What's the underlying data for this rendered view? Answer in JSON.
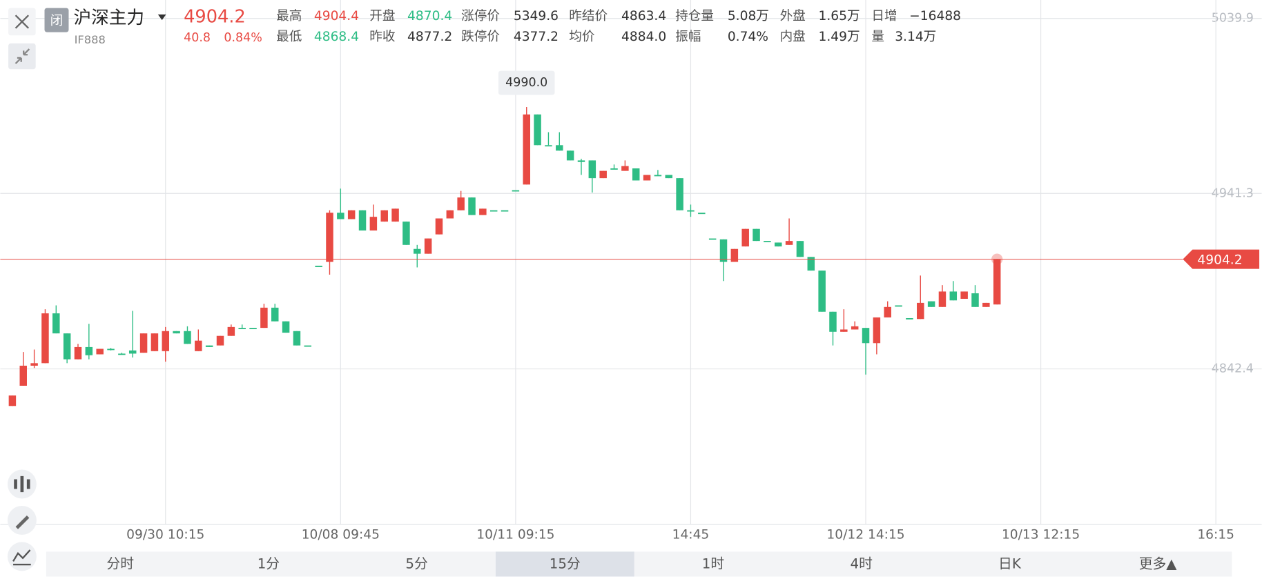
{
  "header": {
    "badge": "闭",
    "name": "沪深主力",
    "code": "IF888",
    "price": "4904.2",
    "change": "40.8",
    "change_pct": "0.84%"
  },
  "quote": {
    "rows": [
      [
        {
          "label": "最高",
          "value": "4904.4",
          "color": "#e84a43"
        },
        {
          "label": "开盘",
          "value": "4870.4",
          "color": "#2ebd85"
        },
        {
          "label": "涨停价",
          "value": "5349.6",
          "color": "#333333"
        },
        {
          "label": "昨结价",
          "value": "4863.4",
          "color": "#333333"
        },
        {
          "label": "持仓量",
          "value": "5.08万",
          "color": "#333333"
        },
        {
          "label": "外盘",
          "value": "1.65万",
          "color": "#333333"
        },
        {
          "label": "日增",
          "value": "−16488",
          "color": "#333333"
        }
      ],
      [
        {
          "label": "最低",
          "value": "4868.4",
          "color": "#2ebd85"
        },
        {
          "label": "昨收",
          "value": "4877.2",
          "color": "#333333"
        },
        {
          "label": "跌停价",
          "value": "4377.2",
          "color": "#333333"
        },
        {
          "label": "均价",
          "value": "4884.0",
          "color": "#333333"
        },
        {
          "label": "振幅",
          "value": "0.74%",
          "color": "#333333"
        },
        {
          "label": "内盘",
          "value": "1.49万",
          "color": "#333333"
        },
        {
          "label": "量",
          "value": "3.14万",
          "color": "#333333"
        }
      ]
    ]
  },
  "periods": {
    "items": [
      "分时",
      "1分",
      "5分",
      "15分",
      "1时",
      "4时",
      "日K",
      "更多▲"
    ],
    "selected": 3
  },
  "chart_data": {
    "type": "candlestick",
    "annotation": "4990.0",
    "up_color": "#e84a43",
    "down_color": "#2ebd85",
    "last_price_color": "#e84a43",
    "grid": true,
    "ylim": [
      4754.8,
      5050.3
    ],
    "yticks": [
      5039.9,
      4941.3,
      4842.4
    ],
    "categories": [
      null,
      null,
      null,
      null,
      null,
      null,
      null,
      null,
      null,
      null,
      null,
      null,
      null,
      null,
      "09/30 10:15",
      null,
      null,
      null,
      null,
      null,
      null,
      null,
      null,
      null,
      null,
      null,
      null,
      null,
      null,
      null,
      "10/08 09:45",
      null,
      null,
      null,
      null,
      null,
      null,
      null,
      null,
      null,
      null,
      null,
      null,
      null,
      null,
      null,
      "10/11 09:15",
      null,
      null,
      null,
      null,
      null,
      null,
      null,
      null,
      null,
      null,
      null,
      null,
      null,
      null,
      null,
      "14:45",
      null,
      null,
      null,
      null,
      null,
      null,
      null,
      null,
      null,
      null,
      null,
      null,
      null,
      null,
      null,
      "10/12 14:15",
      null,
      null,
      null,
      null,
      null,
      null,
      null,
      null,
      null,
      null,
      null,
      null,
      null,
      null,
      null,
      "10/13 12:15",
      null,
      null,
      null,
      null,
      null,
      null,
      null,
      null,
      null,
      null,
      null,
      null,
      null,
      null,
      null,
      "16:15"
    ],
    "open": [
      4821.5,
      4832.9,
      4844.2,
      4845.6,
      4873.7,
      4862.4,
      4847.8,
      4854.7,
      4850.6,
      4853.7,
      4851.0,
      4852.8,
      4851.5,
      4852.4,
      4852.4,
      4863.7,
      4863.7,
      4852.4,
      4855.6,
      4855.6,
      4861.0,
      4865.5,
      4865.5,
      4865.5,
      4876.9,
      4869.2,
      4863.7,
      4855.6,
      4900.5,
      4902.7,
      4930.4,
      4926.8,
      4931.8,
      4920.4,
      4925.4,
      4925.4,
      4925.4,
      4910.0,
      4907.3,
      4918.2,
      4927.2,
      4931.8,
      4939.0,
      4929.1,
      4931.8,
      4931.8,
      4943.1,
      4946.3,
      4985.8,
      4968.5,
      4968.5,
      4965.4,
      4959.9,
      4959.9,
      4949.9,
      4955.4,
      4954.0,
      4955.4,
      4948.6,
      4951.7,
      4951.7,
      4949.9,
      4931.8,
      4930.4,
      4915.9,
      4915.4,
      4902.7,
      4911.4,
      4921.3,
      4914.5,
      4913.6,
      4912.3,
      4914.5,
      4905.5,
      4897.8,
      4874.6,
      4863.3,
      4864.6,
      4865.5,
      4856.9,
      4871.4,
      4878.2,
      4871.0,
      4870.5,
      4880.5,
      4877.3,
      4886.0,
      4881.9,
      4885.0,
      4877.3,
      4878.7,
      null,
      null,
      null,
      null,
      null,
      null,
      null,
      null,
      null,
      null,
      null,
      null,
      null,
      null,
      null,
      null,
      null,
      null,
      null,
      null
    ],
    "high": [
      4827.4,
      4851.9,
      4853.3,
      4876.0,
      4878.2,
      4862.4,
      4856.5,
      4867.8,
      4853.7,
      4854.2,
      4851.5,
      4875.1,
      4862.4,
      4862.4,
      4866.0,
      4863.7,
      4866.4,
      4864.6,
      4855.6,
      4861.0,
      4867.4,
      4867.4,
      4865.5,
      4879.1,
      4879.1,
      4869.2,
      4863.7,
      4855.6,
      4900.5,
      4931.8,
      4944.0,
      4931.8,
      4931.8,
      4935.0,
      4931.8,
      4932.7,
      4925.4,
      4912.3,
      4915.9,
      4927.2,
      4931.8,
      4942.7,
      4939.0,
      4932.7,
      4931.8,
      4931.8,
      4943.1,
      4990.0,
      4985.8,
      4975.8,
      4975.8,
      4965.4,
      4960.8,
      4959.9,
      4954.0,
      4957.6,
      4959.9,
      4955.4,
      4951.7,
      4954.5,
      4951.7,
      4949.9,
      4935.0,
      4930.4,
      4915.9,
      4915.4,
      4910.0,
      4921.3,
      4921.3,
      4914.5,
      4913.6,
      4927.2,
      4914.5,
      4905.5,
      4897.8,
      4874.6,
      4876.0,
      4869.2,
      4865.5,
      4871.4,
      4880.5,
      4878.2,
      4871.0,
      4895.0,
      4880.5,
      4889.6,
      4891.9,
      4886.0,
      4889.6,
      4879.6,
      4904.4,
      null,
      null,
      null,
      null,
      null,
      null,
      null,
      null,
      null,
      null,
      null,
      null,
      null,
      null,
      null,
      null,
      null,
      null,
      null,
      null
    ],
    "low": [
      4821.5,
      4832.9,
      4842.9,
      4845.6,
      4862.4,
      4845.6,
      4847.8,
      4847.8,
      4850.6,
      4852.8,
      4850.6,
      4848.8,
      4851.5,
      4852.4,
      4846.5,
      4862.4,
      4856.5,
      4852.4,
      4854.7,
      4855.6,
      4861.0,
      4865.5,
      4865.5,
      4865.5,
      4869.2,
      4862.8,
      4855.6,
      4855.6,
      4900.5,
      4895.5,
      4926.8,
      4926.8,
      4920.4,
      4920.4,
      4925.4,
      4925.4,
      4912.3,
      4899.6,
      4907.3,
      4918.2,
      4927.2,
      4931.8,
      4929.1,
      4929.1,
      4931.8,
      4931.8,
      4943.1,
      4946.3,
      4968.5,
      4968.5,
      4965.4,
      4959.9,
      4951.7,
      4941.8,
      4949.9,
      4955.4,
      4954.0,
      4948.6,
      4948.6,
      4951.7,
      4949.9,
      4931.8,
      4928.1,
      4930.4,
      4915.9,
      4891.9,
      4902.7,
      4911.4,
      4914.5,
      4914.5,
      4911.4,
      4912.3,
      4905.5,
      4897.8,
      4874.6,
      4855.6,
      4863.3,
      4864.6,
      4839.2,
      4850.6,
      4871.4,
      4878.2,
      4871.0,
      4870.5,
      4877.3,
      4877.3,
      4881.0,
      4881.9,
      4877.3,
      4877.3,
      4878.7,
      null,
      null,
      null,
      null,
      null,
      null,
      null,
      null,
      null,
      null,
      null,
      null,
      null,
      null,
      null,
      null,
      null,
      null,
      null,
      null
    ],
    "close": [
      4827.4,
      4844.2,
      4845.6,
      4873.7,
      4862.4,
      4847.8,
      4854.7,
      4850.1,
      4853.7,
      4853.7,
      4851.0,
      4851.0,
      4862.4,
      4862.4,
      4863.7,
      4862.4,
      4856.5,
      4858.3,
      4854.7,
      4861.0,
      4866.0,
      4865.5,
      4865.5,
      4876.9,
      4869.2,
      4862.8,
      4855.6,
      4855.6,
      4900.5,
      4930.4,
      4926.8,
      4931.8,
      4920.4,
      4928.1,
      4931.8,
      4932.7,
      4912.3,
      4907.3,
      4915.9,
      4927.2,
      4931.8,
      4939.0,
      4929.1,
      4932.7,
      4931.8,
      4931.8,
      4943.1,
      4985.8,
      4968.5,
      4968.5,
      4965.4,
      4959.9,
      4959.0,
      4949.9,
      4954.0,
      4955.4,
      4956.7,
      4948.6,
      4951.7,
      4951.7,
      4949.9,
      4931.8,
      4931.8,
      4930.4,
      4915.9,
      4902.7,
      4910.0,
      4921.3,
      4914.5,
      4914.5,
      4911.4,
      4914.5,
      4905.5,
      4897.8,
      4874.6,
      4863.3,
      4864.6,
      4866.4,
      4856.9,
      4871.4,
      4877.3,
      4878.2,
      4871.0,
      4879.6,
      4877.3,
      4886.0,
      4881.0,
      4886.0,
      4877.3,
      4879.6,
      4904.2,
      null,
      null,
      null,
      null,
      null,
      null,
      null,
      null,
      null,
      null,
      null,
      null,
      null,
      null,
      null,
      null,
      null,
      null,
      null,
      null
    ]
  }
}
